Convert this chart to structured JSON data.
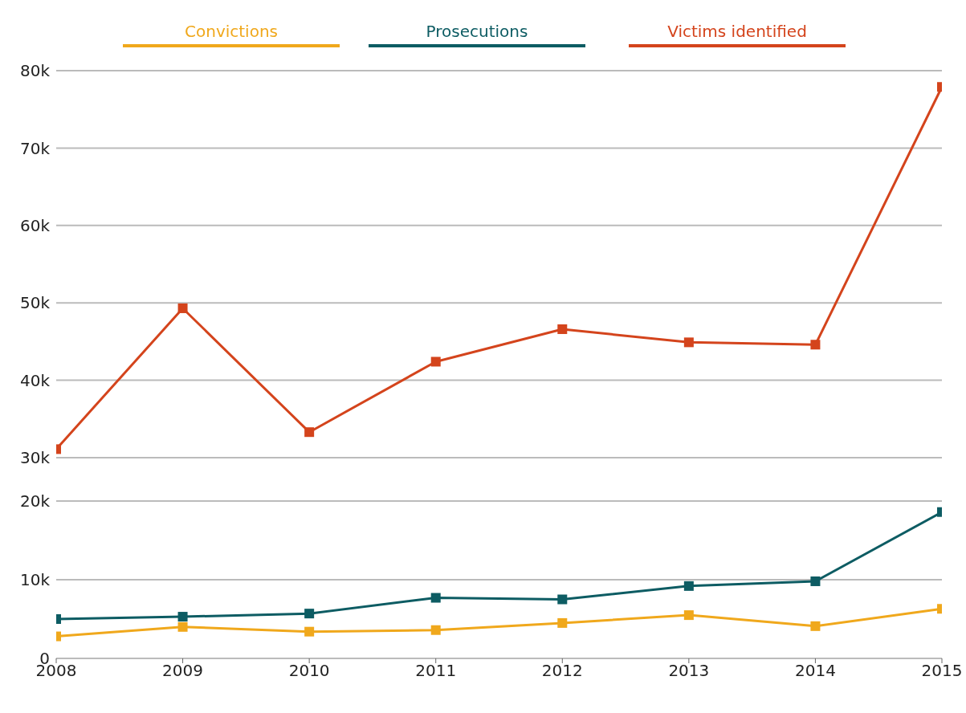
{
  "chart_data": [
    {
      "type": "line",
      "categories": [
        "2008",
        "2009",
        "2010",
        "2011",
        "2012",
        "2013",
        "2014",
        "2015"
      ],
      "series": [
        {
          "name": "Victims identified",
          "color": "#d4441c",
          "values": [
            31100,
            49300,
            33300,
            42400,
            46600,
            44900,
            44600,
            77900
          ]
        }
      ],
      "ylim": [
        30000,
        80000
      ],
      "yticks": [
        {
          "value": 30000,
          "label": "30k"
        },
        {
          "value": 40000,
          "label": "40k"
        },
        {
          "value": 50000,
          "label": "50k"
        },
        {
          "value": 60000,
          "label": "60k"
        },
        {
          "value": 70000,
          "label": "70k"
        },
        {
          "value": 80000,
          "label": "80k"
        }
      ],
      "grid": "y",
      "legend": "top",
      "marker": "square",
      "line_style": "solid",
      "tick_labels": "y"
    },
    {
      "type": "line",
      "categories": [
        "2008",
        "2009",
        "2010",
        "2011",
        "2012",
        "2013",
        "2014",
        "2015"
      ],
      "series": [
        {
          "name": "Convictions",
          "color": "#f0a81c",
          "values": [
            2800,
            4000,
            3400,
            3600,
            4500,
            5500,
            4100,
            6300
          ]
        },
        {
          "name": "Prosecutions",
          "color": "#0d5c63",
          "values": [
            5000,
            5300,
            5700,
            7700,
            7500,
            9200,
            9800,
            18600
          ]
        }
      ],
      "ylim": [
        0,
        20000
      ],
      "yticks": [
        0,
        {
          "value": 10000,
          "label": "10k"
        },
        {
          "value": 20000,
          "label": "20k"
        }
      ],
      "grid": "y",
      "legend": "top",
      "marker": "square",
      "line_style": "solid"
    }
  ]
}
